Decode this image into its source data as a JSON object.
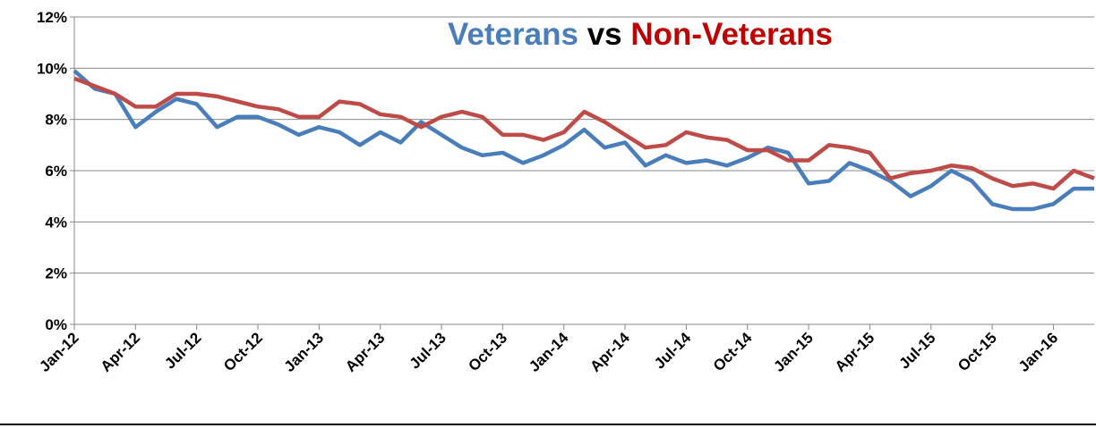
{
  "chart_data": {
    "type": "line",
    "title_separator": "vs",
    "categories": [
      "Jan-12",
      null,
      null,
      "Apr-12",
      null,
      null,
      "Jul-12",
      null,
      null,
      "Oct-12",
      null,
      null,
      "Jan-13",
      null,
      null,
      "Apr-13",
      null,
      null,
      "Jul-13",
      null,
      null,
      "Oct-13",
      null,
      null,
      "Jan-14",
      null,
      null,
      "Apr-14",
      null,
      null,
      "Jul-14",
      null,
      null,
      "Oct-14",
      null,
      null,
      "Jan-15",
      null,
      null,
      "Apr-15",
      null,
      null,
      "Jul-15",
      null,
      null,
      "Oct-15",
      null,
      null,
      "Jan-16",
      null,
      null
    ],
    "series": [
      {
        "name": "Veterans",
        "color": "#4a7ebb",
        "values": [
          9.9,
          9.2,
          9.0,
          7.7,
          8.3,
          8.8,
          8.6,
          7.7,
          8.1,
          8.1,
          7.8,
          7.4,
          7.7,
          7.5,
          7.0,
          7.5,
          7.1,
          7.9,
          7.4,
          6.9,
          6.6,
          6.7,
          6.3,
          6.6,
          7.0,
          7.6,
          6.9,
          7.1,
          6.2,
          6.6,
          6.3,
          6.4,
          6.2,
          6.5,
          6.9,
          6.7,
          5.5,
          5.6,
          6.3,
          6.0,
          5.6,
          5.0,
          5.4,
          6.0,
          5.6,
          4.7,
          4.5,
          4.5,
          4.7,
          5.3,
          5.3
        ]
      },
      {
        "name": "Non-Veterans",
        "color": "#be4b48",
        "values": [
          9.6,
          9.3,
          9.0,
          8.5,
          8.5,
          9.0,
          9.0,
          8.9,
          8.7,
          8.5,
          8.4,
          8.1,
          8.1,
          8.7,
          8.6,
          8.2,
          8.1,
          7.7,
          8.1,
          8.3,
          8.1,
          7.4,
          7.4,
          7.2,
          7.5,
          8.3,
          7.9,
          7.4,
          6.9,
          7.0,
          7.5,
          7.3,
          7.2,
          6.8,
          6.8,
          6.4,
          6.4,
          7.0,
          6.9,
          6.7,
          5.7,
          5.9,
          6.0,
          6.2,
          6.1,
          5.7,
          5.4,
          5.5,
          5.3,
          6.0,
          5.7
        ]
      }
    ],
    "title_colors": [
      "#4a7ebb",
      "#000000",
      "#c00000"
    ],
    "ylim": [
      0,
      12
    ],
    "yticks": [
      {
        "value": 0,
        "label": "0%"
      },
      {
        "value": 2,
        "label": "2%"
      },
      {
        "value": 4,
        "label": "4%"
      },
      {
        "value": 6,
        "label": "6%"
      },
      {
        "value": 8,
        "label": "8%"
      },
      {
        "value": 10,
        "label": "10%"
      },
      {
        "value": 12,
        "label": "12%"
      }
    ],
    "grid": true
  }
}
